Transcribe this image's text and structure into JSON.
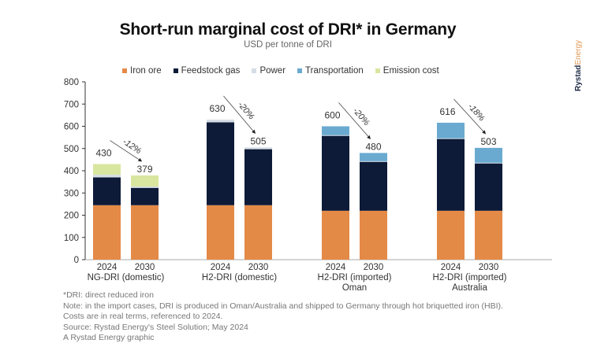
{
  "chart_data": {
    "type": "bar",
    "stacked": true,
    "title": "Short-run marginal cost of DRI* in Germany",
    "subtitle": "USD per tonne of DRI",
    "xlabel": "",
    "ylabel": "",
    "ylim": [
      0,
      800
    ],
    "yticks": [
      0,
      100,
      200,
      300,
      400,
      500,
      600,
      700,
      800
    ],
    "grid": false,
    "legend_position": "top",
    "groups": [
      {
        "label": "NG-DRI (domestic)",
        "label_line2": "",
        "bars": [
          "2024",
          "2030"
        ],
        "change": "-12%"
      },
      {
        "label": "H2-DRI (domestic)",
        "label_line2": "",
        "bars": [
          "2024",
          "2030"
        ],
        "change": "-20%"
      },
      {
        "label": "H2-DRI (imported)",
        "label_line2": "Oman",
        "bars": [
          "2024",
          "2030"
        ],
        "change": "-20%"
      },
      {
        "label": "H2-DRI (imported)",
        "label_line2": "Australia",
        "bars": [
          "2024",
          "2030"
        ],
        "change": "-18%"
      }
    ],
    "categories": [
      "NG-DRI 2024",
      "NG-DRI 2030",
      "H2-DRI domestic 2024",
      "H2-DRI domestic 2030",
      "H2-DRI Oman 2024",
      "H2-DRI Oman 2030",
      "H2-DRI Australia 2024",
      "H2-DRI Australia 2030"
    ],
    "series": [
      {
        "name": "Iron ore",
        "color": "#e48a47",
        "values": [
          245,
          245,
          245,
          245,
          220,
          220,
          220,
          220
        ]
      },
      {
        "name": "Feedstock gas",
        "color": "#0d1b38",
        "values": [
          125,
          78,
          373,
          252,
          337,
          220,
          323,
          213
        ]
      },
      {
        "name": "Power",
        "color": "#d5dde6",
        "values": [
          12,
          6,
          12,
          8,
          3,
          3,
          3,
          3
        ]
      },
      {
        "name": "Transportation",
        "color": "#6aaad0",
        "values": [
          0,
          0,
          0,
          0,
          40,
          37,
          70,
          67
        ]
      },
      {
        "name": "Emission cost",
        "color": "#d9e6a0",
        "values": [
          48,
          50,
          0,
          0,
          0,
          0,
          0,
          0
        ]
      }
    ],
    "totals": [
      430,
      379,
      630,
      505,
      600,
      480,
      616,
      503
    ]
  },
  "brand": {
    "part1": "Rystad",
    "part2": "Energy"
  },
  "notes": [
    "*DRI: direct reduced iron",
    "Note: in the import cases, DRI is produced in Oman/Australia and shipped to Germany through hot briquetted iron (HBI).",
    "Costs are in real terms, referenced to 2024.",
    "Source: Rystad Energy's Steel Solution; May 2024",
    "A Rystad Energy graphic"
  ]
}
